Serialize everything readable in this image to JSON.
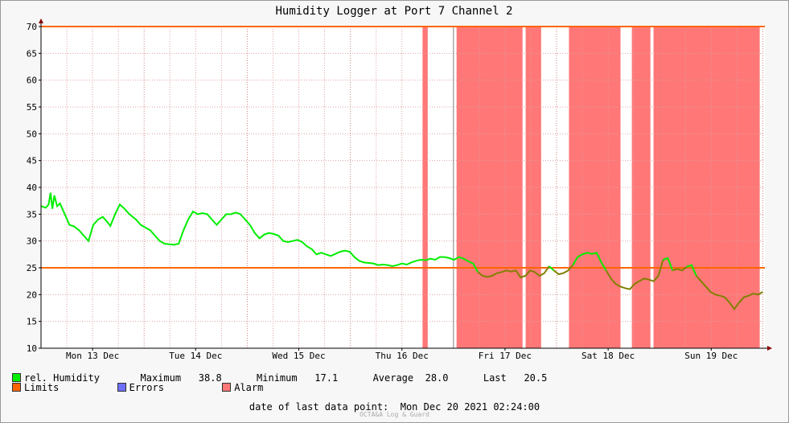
{
  "chart_data": {
    "type": "line",
    "title": "Humidity Logger at Port 7 Channel 2",
    "ylim": [
      10,
      70
    ],
    "yticks": [
      10,
      15,
      20,
      25,
      30,
      35,
      40,
      45,
      50,
      55,
      60,
      65,
      70
    ],
    "xlim_days": [
      0,
      7.02
    ],
    "x_ticks": [
      {
        "label": "Mon 13 Dec",
        "day": 0.5
      },
      {
        "label": "Tue 14 Dec",
        "day": 1.5
      },
      {
        "label": "Wed 15 Dec",
        "day": 2.5
      },
      {
        "label": "Thu 16 Dec",
        "day": 3.5
      },
      {
        "label": "Fri 17 Dec",
        "day": 4.5
      },
      {
        "label": "Sat 18 Dec",
        "day": 5.5
      },
      {
        "label": "Sun 19 Dec",
        "day": 6.5
      }
    ],
    "limits": [
      25,
      70
    ],
    "alarm_periods_days": [
      [
        3.7,
        3.75
      ],
      [
        4.03,
        4.67
      ],
      [
        4.7,
        4.85
      ],
      [
        5.12,
        5.62
      ],
      [
        5.73,
        5.91
      ],
      [
        5.94,
        6.97
      ]
    ],
    "series": [
      {
        "name": "rel. Humidity",
        "color": "#00ee00",
        "points": [
          [
            0,
            36.5
          ],
          [
            0.05,
            36.2
          ],
          [
            0.08,
            36.8
          ],
          [
            0.1,
            39
          ],
          [
            0.12,
            36
          ],
          [
            0.14,
            38.5
          ],
          [
            0.17,
            36.5
          ],
          [
            0.2,
            37
          ],
          [
            0.25,
            35
          ],
          [
            0.3,
            33
          ],
          [
            0.35,
            32.7
          ],
          [
            0.4,
            32
          ],
          [
            0.45,
            31
          ],
          [
            0.5,
            30
          ],
          [
            0.55,
            33
          ],
          [
            0.6,
            34
          ],
          [
            0.65,
            34.5
          ],
          [
            0.7,
            33.5
          ],
          [
            0.73,
            32.8
          ],
          [
            0.78,
            35
          ],
          [
            0.83,
            36.8
          ],
          [
            0.88,
            36
          ],
          [
            0.93,
            35
          ],
          [
            1.0,
            34
          ],
          [
            1.05,
            33
          ],
          [
            1.1,
            32.5
          ],
          [
            1.15,
            32
          ],
          [
            1.2,
            31
          ],
          [
            1.25,
            30
          ],
          [
            1.3,
            29.5
          ],
          [
            1.4,
            29.3
          ],
          [
            1.45,
            29.5
          ],
          [
            1.5,
            32
          ],
          [
            1.55,
            34
          ],
          [
            1.6,
            35.5
          ],
          [
            1.65,
            35
          ],
          [
            1.7,
            35.2
          ],
          [
            1.75,
            35
          ],
          [
            1.8,
            34
          ],
          [
            1.85,
            33
          ],
          [
            1.9,
            34
          ],
          [
            1.95,
            35
          ],
          [
            2.0,
            35
          ],
          [
            2.05,
            35.3
          ],
          [
            2.1,
            35
          ],
          [
            2.15,
            34
          ],
          [
            2.2,
            33
          ],
          [
            2.25,
            31.5
          ],
          [
            2.3,
            30.5
          ],
          [
            2.35,
            31.2
          ],
          [
            2.4,
            31.5
          ],
          [
            2.45,
            31.3
          ],
          [
            2.5,
            31
          ],
          [
            2.55,
            30
          ],
          [
            2.6,
            29.8
          ],
          [
            2.65,
            30
          ],
          [
            2.7,
            30.2
          ],
          [
            2.75,
            29.8
          ],
          [
            2.8,
            29
          ],
          [
            2.85,
            28.5
          ],
          [
            2.9,
            27.5
          ],
          [
            2.95,
            27.8
          ],
          [
            3.0,
            27.5
          ],
          [
            3.05,
            27.2
          ],
          [
            3.1,
            27.6
          ],
          [
            3.15,
            28
          ],
          [
            3.2,
            28.2
          ],
          [
            3.25,
            28
          ],
          [
            3.3,
            27
          ],
          [
            3.35,
            26.3
          ],
          [
            3.4,
            26
          ],
          [
            3.45,
            25.9
          ],
          [
            3.5,
            25.8
          ],
          [
            3.55,
            25.5
          ],
          [
            3.6,
            25.6
          ],
          [
            3.65,
            25.5
          ],
          [
            3.7,
            25.3
          ],
          [
            3.75,
            25.5
          ],
          [
            3.8,
            25.8
          ],
          [
            3.85,
            25.6
          ],
          [
            3.9,
            26
          ],
          [
            3.95,
            26.3
          ],
          [
            4.0,
            26.5
          ],
          [
            4.05,
            26.4
          ],
          [
            4.1,
            26.7
          ],
          [
            4.15,
            26.5
          ],
          [
            4.2,
            27
          ],
          [
            4.25,
            27
          ],
          [
            4.3,
            26.8
          ],
          [
            4.35,
            26.5
          ],
          [
            4.4,
            27
          ],
          [
            4.45,
            26.7
          ],
          [
            4.5,
            26.2
          ],
          [
            4.55,
            25.8
          ],
          [
            4.6,
            24.2
          ],
          [
            4.65,
            23.5
          ],
          [
            4.7,
            23.3
          ],
          [
            4.75,
            23.5
          ],
          [
            4.8,
            24
          ],
          [
            4.85,
            24.2
          ],
          [
            4.9,
            24.5
          ],
          [
            4.95,
            24.3
          ],
          [
            5.0,
            24.5
          ],
          [
            5.05,
            23.2
          ],
          [
            5.1,
            23.5
          ],
          [
            5.15,
            24.5
          ],
          [
            5.2,
            24.2
          ],
          [
            5.25,
            23.5
          ],
          [
            5.3,
            24
          ],
          [
            5.35,
            25.3
          ],
          [
            5.4,
            24.5
          ],
          [
            5.45,
            23.8
          ],
          [
            5.5,
            24
          ],
          [
            5.55,
            24.5
          ],
          [
            5.6,
            25.5
          ],
          [
            5.65,
            27
          ],
          [
            5.7,
            27.5
          ],
          [
            5.75,
            27.8
          ],
          [
            5.8,
            27.6
          ],
          [
            5.85,
            27.8
          ],
          [
            5.9,
            26
          ],
          [
            5.95,
            24.5
          ],
          [
            6.0,
            23
          ],
          [
            6.05,
            22
          ],
          [
            6.1,
            21.5
          ],
          [
            6.15,
            21.2
          ],
          [
            6.2,
            21
          ],
          [
            6.25,
            22
          ],
          [
            6.3,
            22.5
          ],
          [
            6.35,
            23
          ],
          [
            6.4,
            22.8
          ],
          [
            6.45,
            22.5
          ],
          [
            6.5,
            23.5
          ],
          [
            6.55,
            26.5
          ],
          [
            6.6,
            26.8
          ],
          [
            6.65,
            24.5
          ],
          [
            6.7,
            24.8
          ],
          [
            6.75,
            24.5
          ],
          [
            6.8,
            25.2
          ],
          [
            6.85,
            25.5
          ],
          [
            6.9,
            23.5
          ],
          [
            6.95,
            22.5
          ],
          [
            7.0,
            21.5
          ],
          [
            7.05,
            20.5
          ],
          [
            7.1,
            20
          ],
          [
            7.15,
            19.8
          ],
          [
            7.2,
            19.5
          ],
          [
            7.25,
            18.5
          ],
          [
            7.3,
            17.3
          ],
          [
            7.35,
            18.5
          ],
          [
            7.4,
            19.5
          ],
          [
            7.45,
            19.8
          ],
          [
            7.5,
            20.2
          ],
          [
            7.55,
            20
          ],
          [
            7.6,
            20.5
          ]
        ]
      }
    ]
  },
  "legend": {
    "humidity_label": "rel. Humidity",
    "maximum_label": "Maximum",
    "maximum_value": "38.8",
    "minimum_label": "Minimum",
    "minimum_value": "17.1",
    "average_label": "Average",
    "average_value": "28.0",
    "last_label": "Last",
    "last_value": "20.5",
    "limits_label": "Limits",
    "errors_label": "Errors",
    "alarm_label": "Alarm"
  },
  "footer": {
    "last_point_label": "date of last data point:",
    "last_point_value": "Mon Dec 20 2021 02:24:00",
    "credit": "OCTA&A Log & Guard"
  },
  "colors": {
    "humidity": "#00ee00",
    "humidity_in_alarm": "#808000",
    "limits": "#ff6600",
    "errors": "#6f6fff",
    "alarm": "#ff7777",
    "grid": "#e0a0a0"
  }
}
